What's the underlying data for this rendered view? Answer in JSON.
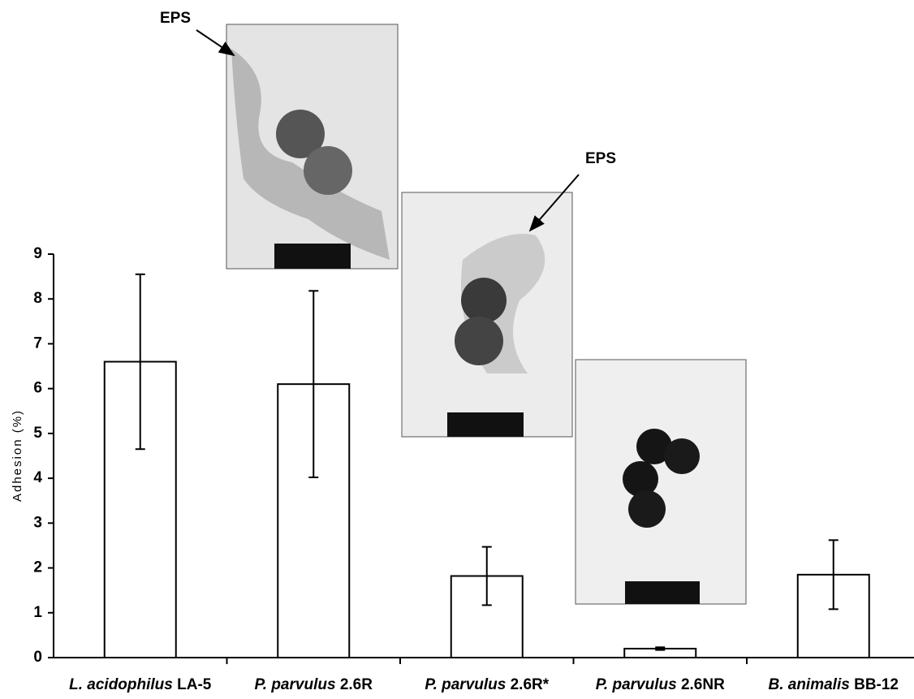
{
  "chart_data": {
    "type": "bar",
    "y_label": "Adhesion (%)",
    "categories": [
      {
        "name": "L. acidophilus",
        "strain": "LA-5"
      },
      {
        "name": "P. parvulus",
        "strain": "2.6R"
      },
      {
        "name": "P. parvulus",
        "strain": "2.6R*"
      },
      {
        "name": "P. parvulus",
        "strain": "2.6NR"
      },
      {
        "name": "B. animalis",
        "strain": "BB-12"
      }
    ],
    "values": [
      6.6,
      6.1,
      1.82,
      0.2,
      1.85
    ],
    "errors": [
      1.95,
      2.08,
      0.65,
      0.03,
      0.77
    ],
    "color": "#ffffff",
    "ylim": [
      0,
      9
    ],
    "yticks": [
      0,
      1,
      2,
      3,
      4,
      5,
      6,
      7,
      8,
      9
    ],
    "annotations": [
      "EPS",
      "EPS"
    ]
  }
}
